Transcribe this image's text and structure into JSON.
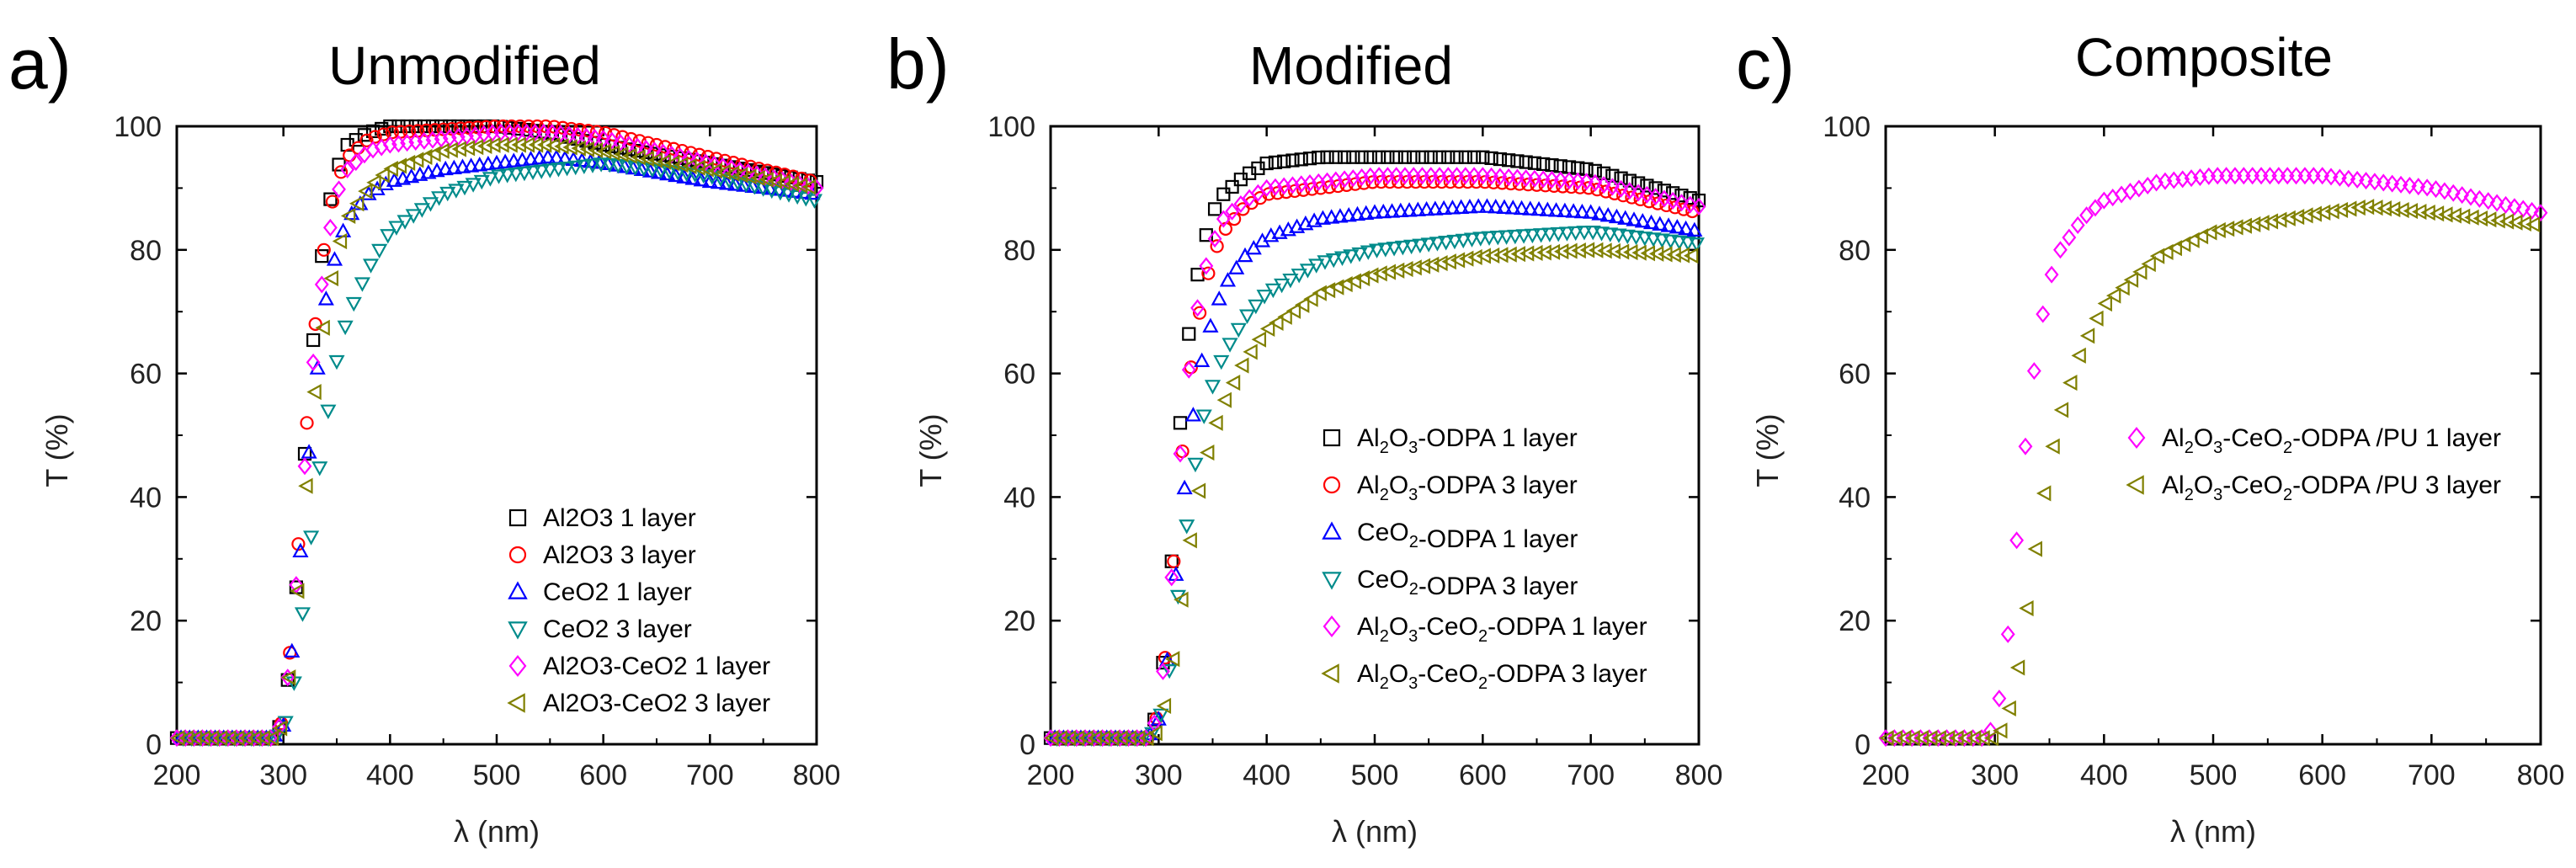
{
  "chart_data": [
    {
      "type": "scatter",
      "panel_letter": "a)",
      "title": "Unmodified",
      "xlabel": "λ (nm)",
      "ylabel": "T (%)",
      "xlim": [
        200,
        800
      ],
      "ylim": [
        0,
        100
      ],
      "xticks": [
        200,
        300,
        400,
        500,
        600,
        700,
        800
      ],
      "yticks": [
        0,
        20,
        40,
        60,
        80,
        100
      ],
      "legend_position": "bottom-right",
      "series": [
        {
          "name": "Al2O3 1 layer",
          "marker": "square",
          "color": "#000000",
          "points": [
            [
              200,
              1
            ],
            [
              290,
              1
            ],
            [
              300,
              4
            ],
            [
              310,
              20
            ],
            [
              320,
              47
            ],
            [
              330,
              70
            ],
            [
              340,
              85
            ],
            [
              350,
              93
            ],
            [
              360,
              97
            ],
            [
              380,
              99
            ],
            [
              400,
              100
            ],
            [
              500,
              100
            ],
            [
              550,
              99
            ],
            [
              600,
              97
            ],
            [
              700,
              94
            ],
            [
              800,
              91
            ]
          ]
        },
        {
          "name": "Al2O3 3 layer",
          "marker": "circle",
          "color": "#ff0000",
          "points": [
            [
              200,
              1
            ],
            [
              290,
              1
            ],
            [
              300,
              4
            ],
            [
              310,
              22
            ],
            [
              320,
              48
            ],
            [
              330,
              68
            ],
            [
              340,
              83
            ],
            [
              350,
              91
            ],
            [
              360,
              95
            ],
            [
              380,
              98
            ],
            [
              400,
              99
            ],
            [
              500,
              100
            ],
            [
              550,
              100
            ],
            [
              600,
              99
            ],
            [
              700,
              95
            ],
            [
              800,
              91
            ]
          ]
        },
        {
          "name": "CeO2 1 layer",
          "marker": "triangle-up",
          "color": "#0000ff",
          "points": [
            [
              200,
              1
            ],
            [
              290,
              1
            ],
            [
              300,
              3
            ],
            [
              310,
              18
            ],
            [
              320,
              40
            ],
            [
              330,
              58
            ],
            [
              340,
              72
            ],
            [
              350,
              80
            ],
            [
              360,
              85
            ],
            [
              380,
              89
            ],
            [
              400,
              91
            ],
            [
              450,
              93
            ],
            [
              500,
              94
            ],
            [
              550,
              95
            ],
            [
              600,
              94
            ],
            [
              700,
              91
            ],
            [
              800,
              89
            ]
          ]
        },
        {
          "name": "CeO2 3 layer",
          "marker": "triangle-down",
          "color": "#008b8b",
          "points": [
            [
              200,
              1
            ],
            [
              290,
              1
            ],
            [
              300,
              2
            ],
            [
              310,
              10
            ],
            [
              320,
              24
            ],
            [
              330,
              40
            ],
            [
              340,
              52
            ],
            [
              350,
              62
            ],
            [
              360,
              69
            ],
            [
              380,
              77
            ],
            [
              400,
              83
            ],
            [
              450,
              89
            ],
            [
              500,
              92
            ],
            [
              550,
              93
            ],
            [
              600,
              94
            ],
            [
              700,
              92
            ],
            [
              800,
              88
            ]
          ]
        },
        {
          "name": "Al2O3-CeO2 1 layer",
          "marker": "diamond",
          "color": "#ff00ff",
          "points": [
            [
              200,
              1
            ],
            [
              290,
              1
            ],
            [
              300,
              4
            ],
            [
              310,
              21
            ],
            [
              320,
              45
            ],
            [
              330,
              66
            ],
            [
              340,
              80
            ],
            [
              350,
              89
            ],
            [
              360,
              93
            ],
            [
              380,
              96
            ],
            [
              400,
              97
            ],
            [
              500,
              99
            ],
            [
              550,
              99
            ],
            [
              600,
              98
            ],
            [
              700,
              94
            ],
            [
              800,
              90
            ]
          ]
        },
        {
          "name": "Al2O3-CeO2 3 layer",
          "marker": "triangle-left",
          "color": "#808000",
          "points": [
            [
              200,
              1
            ],
            [
              290,
              1
            ],
            [
              300,
              3
            ],
            [
              310,
              16
            ],
            [
              320,
              38
            ],
            [
              330,
              57
            ],
            [
              340,
              70
            ],
            [
              350,
              79
            ],
            [
              360,
              85
            ],
            [
              380,
              90
            ],
            [
              400,
              93
            ],
            [
              450,
              96
            ],
            [
              500,
              97
            ],
            [
              550,
              97
            ],
            [
              600,
              96
            ],
            [
              700,
              93
            ],
            [
              800,
              90
            ]
          ]
        }
      ]
    },
    {
      "type": "scatter",
      "panel_letter": "b)",
      "title": "Modified",
      "xlabel": "λ (nm)",
      "ylabel": "T (%)",
      "xlim": [
        200,
        800
      ],
      "ylim": [
        0,
        100
      ],
      "xticks": [
        200,
        300,
        400,
        500,
        600,
        700,
        800
      ],
      "yticks": [
        0,
        20,
        40,
        60,
        80,
        100
      ],
      "legend_position": "bottom-right",
      "series": [
        {
          "name": "Al2O3-ODPA 1 layer",
          "label_parts": [
            "Al",
            "2",
            "O",
            "3",
            "-ODPA 1 layer"
          ],
          "marker": "square",
          "color": "#000000",
          "points": [
            [
              200,
              1
            ],
            [
              290,
              1
            ],
            [
              300,
              6
            ],
            [
              310,
              24
            ],
            [
              320,
              52
            ],
            [
              330,
              70
            ],
            [
              340,
              80
            ],
            [
              350,
              86
            ],
            [
              360,
              89
            ],
            [
              380,
              92
            ],
            [
              400,
              94
            ],
            [
              450,
              95
            ],
            [
              500,
              95
            ],
            [
              600,
              95
            ],
            [
              700,
              93
            ],
            [
              800,
              88
            ]
          ]
        },
        {
          "name": "Al2O3-ODPA 3 layer",
          "label_parts": [
            "Al",
            "2",
            "O",
            "3",
            "-ODPA 3 layer"
          ],
          "marker": "circle",
          "color": "#ff0000",
          "points": [
            [
              200,
              1
            ],
            [
              290,
              1
            ],
            [
              300,
              5
            ],
            [
              310,
              20
            ],
            [
              320,
              44
            ],
            [
              330,
              61
            ],
            [
              340,
              72
            ],
            [
              350,
              79
            ],
            [
              360,
              83
            ],
            [
              380,
              87
            ],
            [
              400,
              89
            ],
            [
              450,
              90
            ],
            [
              500,
              91
            ],
            [
              600,
              91
            ],
            [
              700,
              90
            ],
            [
              800,
              86
            ]
          ]
        },
        {
          "name": "CeO2-ODPA 1 layer",
          "label_parts": [
            "CeO",
            "2",
            "",
            "",
            "-ODPA 1 layer"
          ],
          "marker": "triangle-up",
          "color": "#0000ff",
          "points": [
            [
              200,
              1
            ],
            [
              290,
              1
            ],
            [
              300,
              4
            ],
            [
              310,
              16
            ],
            [
              320,
              35
            ],
            [
              330,
              51
            ],
            [
              340,
              62
            ],
            [
              350,
              69
            ],
            [
              360,
              74
            ],
            [
              380,
              79
            ],
            [
              400,
              82
            ],
            [
              450,
              85
            ],
            [
              500,
              86
            ],
            [
              600,
              87
            ],
            [
              700,
              86
            ],
            [
              800,
              83
            ]
          ]
        },
        {
          "name": "CeO2-ODPA 3 layer",
          "label_parts": [
            "CeO",
            "2",
            "",
            "",
            "-ODPA 3 layer"
          ],
          "marker": "triangle-down",
          "color": "#008b8b",
          "points": [
            [
              200,
              1
            ],
            [
              290,
              1
            ],
            [
              300,
              3
            ],
            [
              310,
              12
            ],
            [
              320,
              27
            ],
            [
              330,
              41
            ],
            [
              340,
              52
            ],
            [
              350,
              58
            ],
            [
              360,
              63
            ],
            [
              380,
              69
            ],
            [
              400,
              73
            ],
            [
              450,
              78
            ],
            [
              500,
              80
            ],
            [
              600,
              82
            ],
            [
              700,
              83
            ],
            [
              800,
              81
            ]
          ]
        },
        {
          "name": "Al2O3-CeO2-ODPA 1 layer",
          "label_parts": [
            "Al",
            "2",
            "O",
            "3",
            "-CeO",
            "2",
            "-ODPA 1 layer"
          ],
          "marker": "diamond",
          "color": "#ff00ff",
          "points": [
            [
              200,
              1
            ],
            [
              290,
              1
            ],
            [
              300,
              5
            ],
            [
              310,
              22
            ],
            [
              320,
              47
            ],
            [
              330,
              64
            ],
            [
              340,
              75
            ],
            [
              350,
              81
            ],
            [
              360,
              85
            ],
            [
              380,
              88
            ],
            [
              400,
              90
            ],
            [
              450,
              91
            ],
            [
              500,
              92
            ],
            [
              600,
              92
            ],
            [
              700,
              91
            ],
            [
              800,
              87
            ]
          ]
        },
        {
          "name": "Al2O3-CeO2-ODPA 3 layer",
          "label_parts": [
            "Al",
            "2",
            "O",
            "3",
            "-CeO",
            "2",
            "-ODPA 3 layer"
          ],
          "marker": "triangle-left",
          "color": "#808000",
          "points": [
            [
              200,
              1
            ],
            [
              290,
              1
            ],
            [
              300,
              2
            ],
            [
              310,
              9
            ],
            [
              320,
              21
            ],
            [
              330,
              33
            ],
            [
              340,
              43
            ],
            [
              350,
              50
            ],
            [
              360,
              55
            ],
            [
              380,
              62
            ],
            [
              400,
              67
            ],
            [
              450,
              73
            ],
            [
              500,
              76
            ],
            [
              600,
              79
            ],
            [
              700,
              80
            ],
            [
              800,
              79
            ]
          ]
        }
      ]
    },
    {
      "type": "scatter",
      "panel_letter": "c)",
      "title": "Composite",
      "xlabel": "λ (nm)",
      "ylabel": "T (%)",
      "xlim": [
        200,
        800
      ],
      "ylim": [
        0,
        100
      ],
      "xticks": [
        200,
        300,
        400,
        500,
        600,
        700,
        800
      ],
      "yticks": [
        0,
        20,
        40,
        60,
        80,
        100
      ],
      "legend_position": "center-right",
      "series": [
        {
          "name": "Al2O3-CeO2-ODPA /PU 1 layer",
          "label_parts": [
            "Al",
            "2",
            "O",
            "3",
            "-CeO",
            "2",
            "-ODPA /PU 1 layer"
          ],
          "marker": "diamond",
          "color": "#ff00ff",
          "points": [
            [
              200,
              1
            ],
            [
              290,
              1
            ],
            [
              300,
              3
            ],
            [
              310,
              14
            ],
            [
              320,
              33
            ],
            [
              330,
              52
            ],
            [
              340,
              66
            ],
            [
              350,
              75
            ],
            [
              360,
              80
            ],
            [
              380,
              85
            ],
            [
              400,
              88
            ],
            [
              450,
              91
            ],
            [
              500,
              92
            ],
            [
              600,
              92
            ],
            [
              700,
              90
            ],
            [
              800,
              86
            ]
          ]
        },
        {
          "name": "Al2O3-CeO2-ODPA /PU 3 layer",
          "label_parts": [
            "Al",
            "2",
            "O",
            "3",
            "-CeO",
            "2",
            "-ODPA /PU 3 layer"
          ],
          "marker": "triangle-left",
          "color": "#808000",
          "points": [
            [
              200,
              1
            ],
            [
              290,
              1
            ],
            [
              300,
              1
            ],
            [
              310,
              3
            ],
            [
              320,
              10
            ],
            [
              330,
              22
            ],
            [
              340,
              34
            ],
            [
              350,
              45
            ],
            [
              360,
              53
            ],
            [
              380,
              64
            ],
            [
              400,
              71
            ],
            [
              450,
              79
            ],
            [
              500,
              83
            ],
            [
              600,
              86
            ],
            [
              640,
              87
            ],
            [
              700,
              86
            ],
            [
              800,
              84
            ]
          ]
        }
      ]
    }
  ]
}
